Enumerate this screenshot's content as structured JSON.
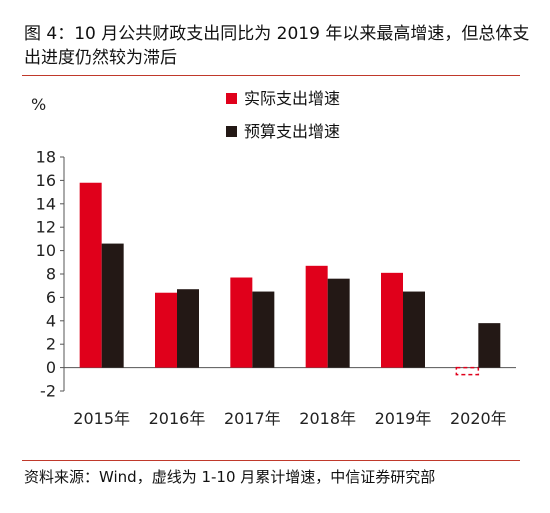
{
  "title": "图 4：10 月公共财政支出同比为 2019 年以来最高增速，但总体支出进度仍然较为滞后",
  "source": "资料来源：Wind，虚线为 1-10 月累计增速，中信证券研究部",
  "chart_data": {
    "type": "bar",
    "unit": "%",
    "categories": [
      "2015年",
      "2016年",
      "2017年",
      "2018年",
      "2019年",
      "2020年"
    ],
    "series": [
      {
        "name": "实际支出增速",
        "color": "#e0001b",
        "values": [
          15.8,
          6.4,
          7.7,
          8.7,
          8.1,
          -0.6
        ],
        "dashed_last": true
      },
      {
        "name": "预算支出增速",
        "color": "#231815",
        "values": [
          10.6,
          6.7,
          6.5,
          7.6,
          6.5,
          3.8
        ]
      }
    ],
    "yticks": [
      "18",
      "16",
      "14",
      "12",
      "10",
      "8",
      "6",
      "4",
      "2",
      "0",
      "-2"
    ],
    "ylim": [
      -2,
      18
    ],
    "grid": false,
    "legend_position": "top-center"
  }
}
